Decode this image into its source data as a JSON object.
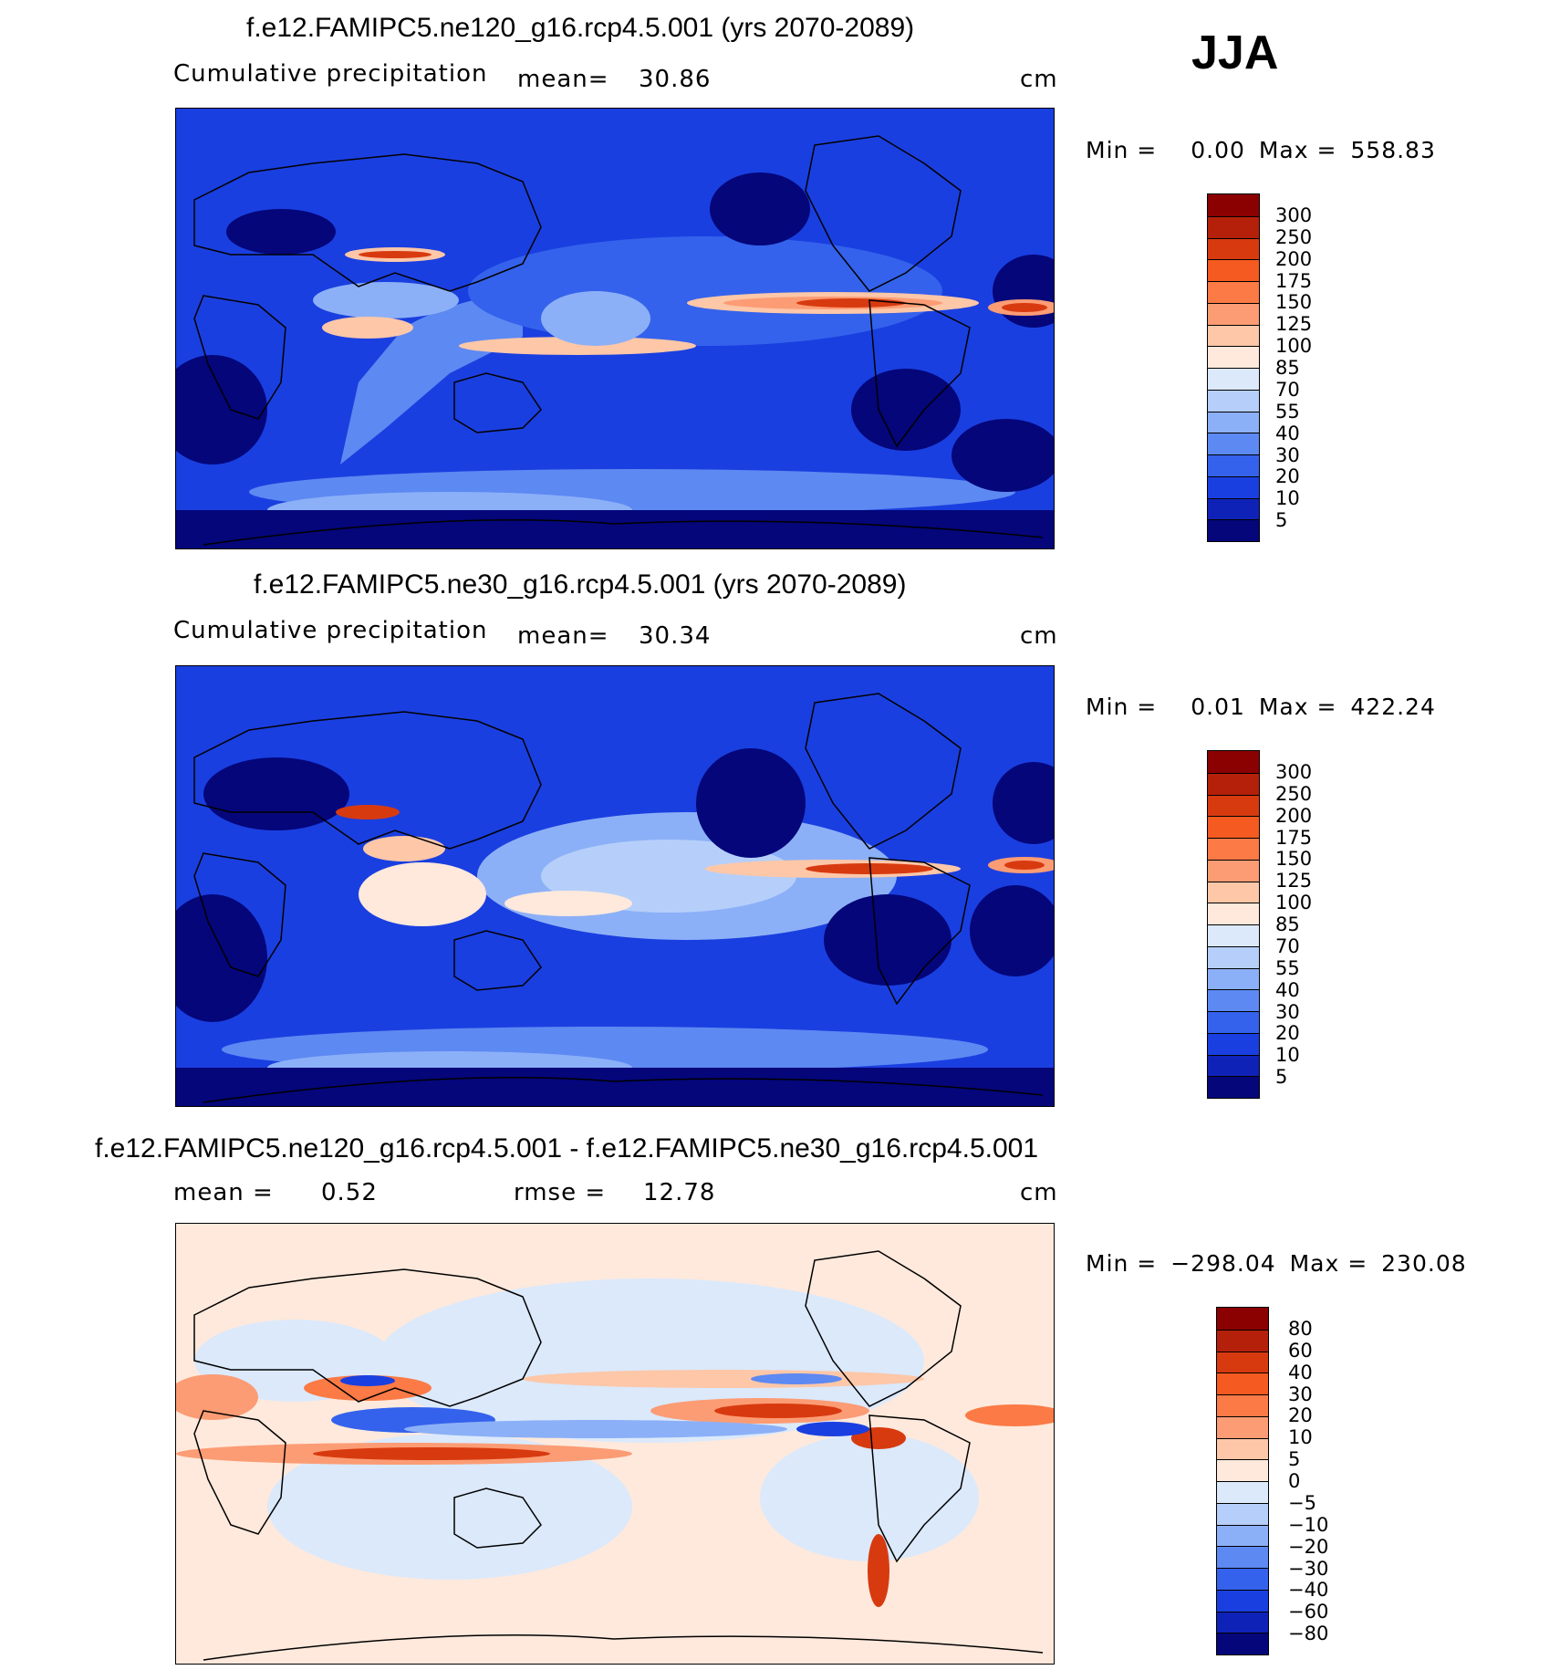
{
  "season": "JJA",
  "panels": [
    {
      "title": "f.e12.FAMIPC5.ne120_g16.rcp4.5.001 (yrs 2070-2089)",
      "variable": "Cumulative precipitation",
      "stat1_label": "mean=",
      "stat1_value": "30.86",
      "units": "cm",
      "min_label": "Min =",
      "min_value": "0.00",
      "max_label": "Max =",
      "max_value": "558.83",
      "colorbar_labels": [
        "300",
        "250",
        "200",
        "175",
        "150",
        "125",
        "100",
        "85",
        "70",
        "55",
        "40",
        "30",
        "20",
        "10",
        "5"
      ],
      "colorbar_colors": [
        "#8b0000",
        "#b5200a",
        "#d83a10",
        "#f55a20",
        "#fb7a45",
        "#fc9c74",
        "#fdc7a8",
        "#fee9dc",
        "#dbe9fb",
        "#b6cffa",
        "#8cb0f7",
        "#5d89f2",
        "#3462ec",
        "#1a3fe0",
        "#0f22b8",
        "#04067a"
      ]
    },
    {
      "title": "f.e12.FAMIPC5.ne30_g16.rcp4.5.001 (yrs 2070-2089)",
      "variable": "Cumulative precipitation",
      "stat1_label": "mean=",
      "stat1_value": "30.34",
      "units": "cm",
      "min_label": "Min =",
      "min_value": "0.01",
      "max_label": "Max =",
      "max_value": "422.24",
      "colorbar_labels": [
        "300",
        "250",
        "200",
        "175",
        "150",
        "125",
        "100",
        "85",
        "70",
        "55",
        "40",
        "30",
        "20",
        "10",
        "5"
      ],
      "colorbar_colors": [
        "#8b0000",
        "#b5200a",
        "#d83a10",
        "#f55a20",
        "#fb7a45",
        "#fc9c74",
        "#fdc7a8",
        "#fee9dc",
        "#dbe9fb",
        "#b6cffa",
        "#8cb0f7",
        "#5d89f2",
        "#3462ec",
        "#1a3fe0",
        "#0f22b8",
        "#04067a"
      ]
    },
    {
      "title": "f.e12.FAMIPC5.ne120_g16.rcp4.5.001 - f.e12.FAMIPC5.ne30_g16.rcp4.5.001",
      "stat1_label": "mean =",
      "stat1_value": "0.52",
      "stat2_label": "rmse =",
      "stat2_value": "12.78",
      "units": "cm",
      "min_label": "Min =",
      "min_value": "−298.04",
      "max_label": "Max =",
      "max_value": "230.08",
      "colorbar_labels": [
        "80",
        "60",
        "40",
        "30",
        "20",
        "10",
        "5",
        "0",
        "−5",
        "−10",
        "−20",
        "−30",
        "−40",
        "−60",
        "−80"
      ],
      "colorbar_colors": [
        "#8b0000",
        "#b5200a",
        "#d83a10",
        "#f55a20",
        "#fb7a45",
        "#fc9c74",
        "#fdc7a8",
        "#fee9dc",
        "#dbe9fb",
        "#b6cffa",
        "#8cb0f7",
        "#5d89f2",
        "#3462ec",
        "#1a3fe0",
        "#0f22b8",
        "#04067a"
      ]
    }
  ]
}
